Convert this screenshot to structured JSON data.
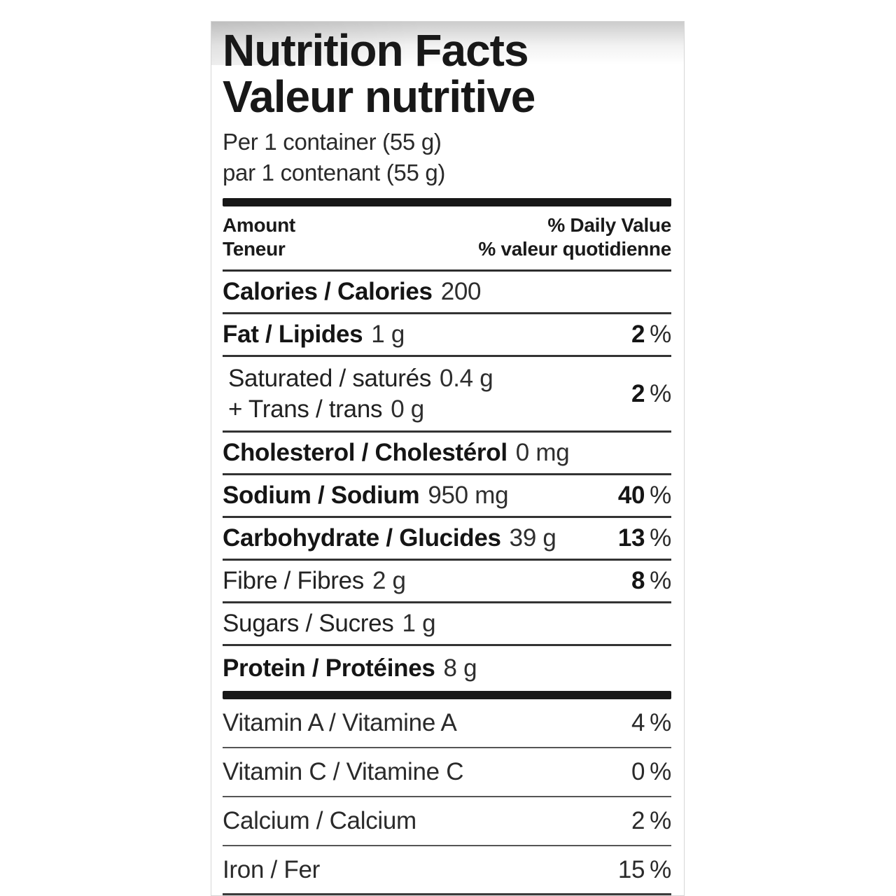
{
  "meta": {
    "percent_sign": "%"
  },
  "colors": {
    "background": "#ffffff",
    "text": "#1c1c1c",
    "thin_rule": "#333333",
    "thick_bar": "#171717"
  },
  "title": {
    "en": "Nutrition Facts",
    "fr": "Valeur nutritive"
  },
  "serving": {
    "en": "Per 1 container (55 g)",
    "fr": "par 1 contenant (55 g)"
  },
  "columns": {
    "amount_en": "Amount",
    "amount_fr": "Teneur",
    "daily_value_en": "% Daily Value",
    "daily_value_fr": "% valeur quotidienne"
  },
  "rows": [
    {
      "label": "Calories / Calories",
      "value": "200"
    },
    {
      "label": "Fat / Lipides",
      "value": "1 g",
      "dv": "2"
    },
    {
      "label": "Saturated / saturés",
      "value": "0.4 g",
      "label2": "+ Trans / trans",
      "value2": "0 g",
      "dv": "2"
    },
    {
      "label": "Cholesterol / Cholestérol",
      "value": "0 mg"
    },
    {
      "label": "Sodium / Sodium",
      "value": "950 mg",
      "dv": "40"
    },
    {
      "label": "Carbohydrate / Glucides",
      "value": "39 g",
      "dv": "13"
    },
    {
      "label": "Fibre / Fibres",
      "value": "2 g",
      "dv": "8"
    },
    {
      "label": "Sugars / Sucres",
      "value": "1 g"
    },
    {
      "label": "Protein / Protéines",
      "value": "8 g"
    }
  ],
  "micronutrients": [
    {
      "label": "Vitamin A / Vitamine A",
      "dv": "4"
    },
    {
      "label": "Vitamin C / Vitamine C",
      "dv": "0"
    },
    {
      "label": "Calcium / Calcium",
      "dv": "2"
    },
    {
      "label": "Iron / Fer",
      "dv": "15"
    }
  ]
}
